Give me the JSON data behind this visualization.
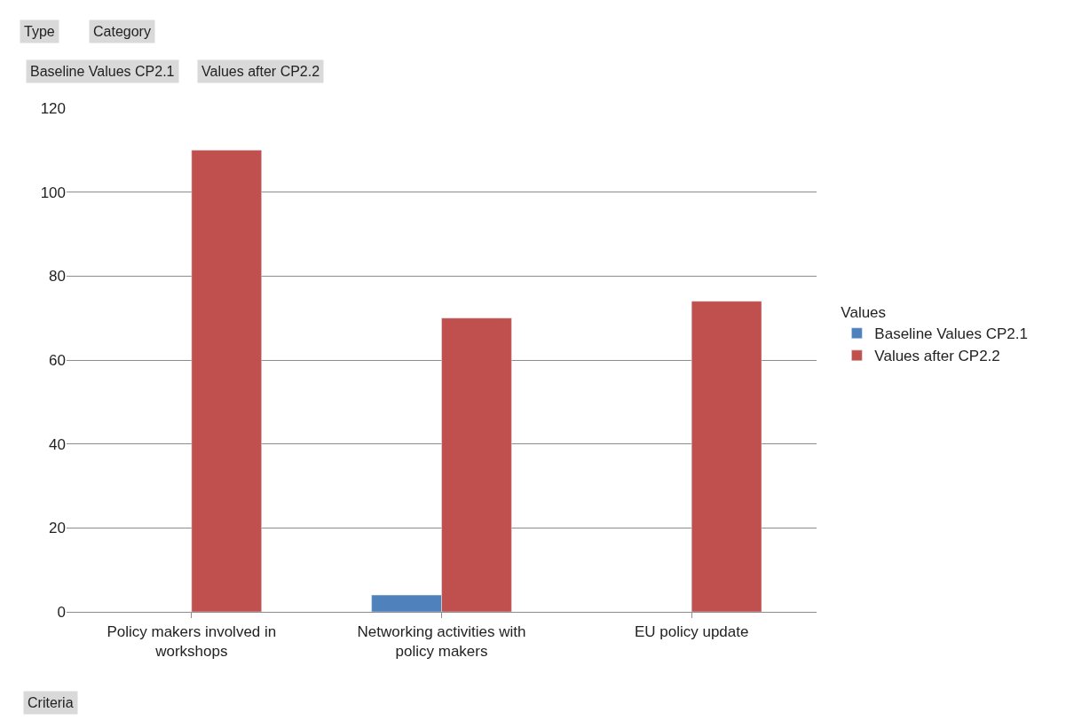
{
  "chart_data": {
    "type": "bar",
    "categories": [
      "Policy makers involved in workshops",
      "Networking activities with policy makers",
      "EU policy update"
    ],
    "series": [
      {
        "name": "Baseline Values CP2.1",
        "color": "#4f81bd",
        "values": [
          null,
          4,
          null
        ]
      },
      {
        "name": "Values after CP2.2",
        "color": "#c0504d",
        "values": [
          110,
          70,
          74
        ]
      }
    ],
    "ylim": [
      0,
      120
    ],
    "yticks": [
      0,
      20,
      40,
      60,
      80,
      100,
      120
    ],
    "grid": "y",
    "legend": "right",
    "legend_title": "Values",
    "annotations": [
      "Type",
      "Category",
      "Baseline Values CP2.1",
      "Values after CP2.2",
      "Criteria"
    ]
  }
}
